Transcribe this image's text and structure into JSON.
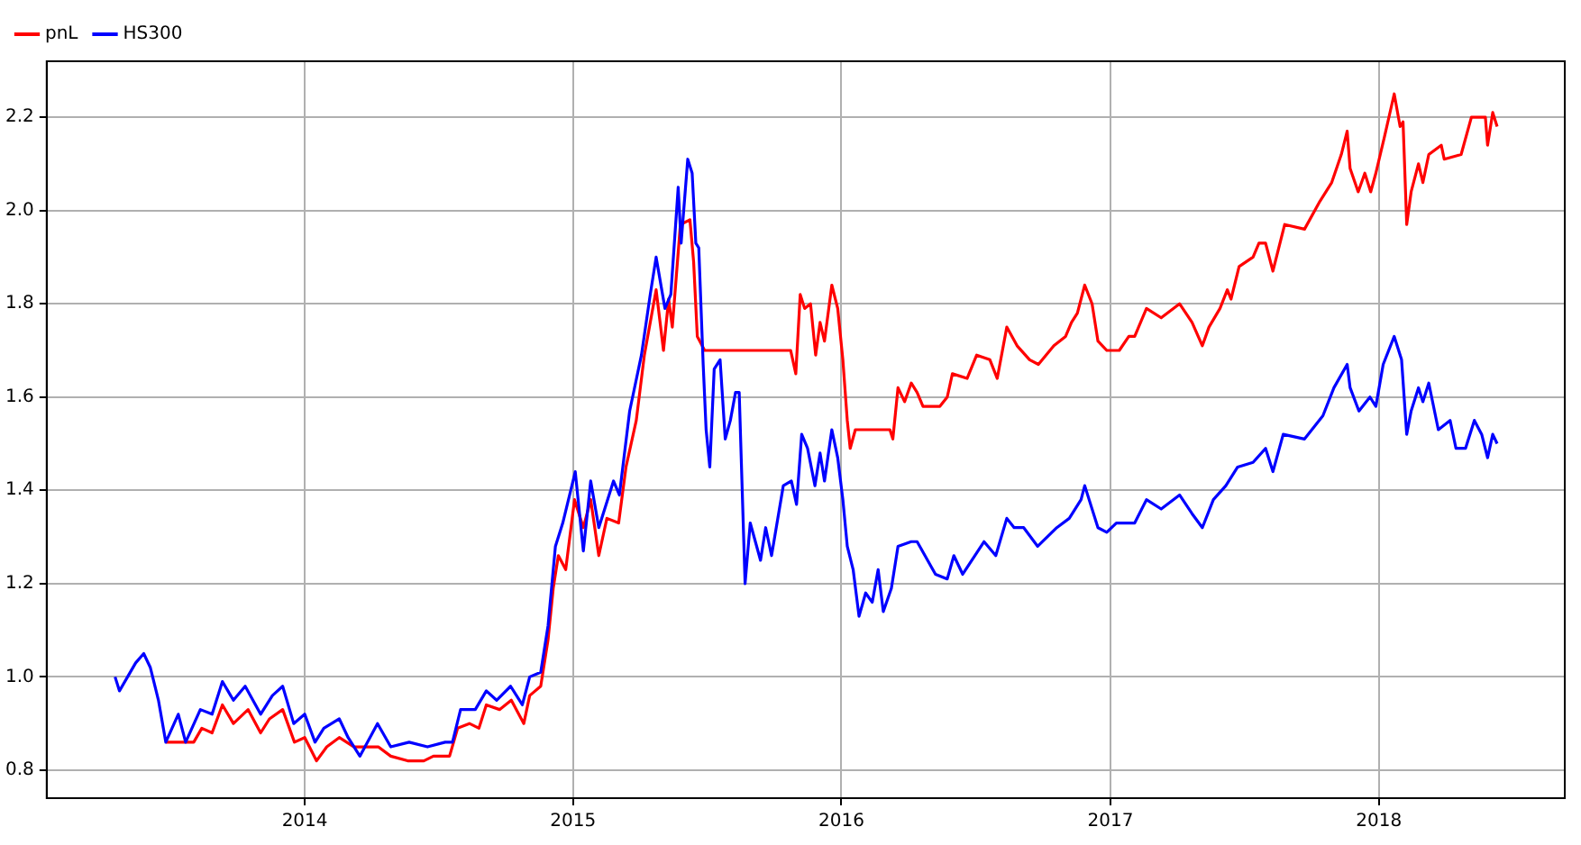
{
  "chart_data": {
    "type": "line",
    "xlim": [
      "2013-01-15",
      "2018-09-11"
    ],
    "xticks": [
      "2014",
      "2015",
      "2016",
      "2017",
      "2018"
    ],
    "ylim": [
      0.74,
      2.32
    ],
    "yticks": [
      0.8,
      {
        "value": 1,
        "label": "1.0"
      },
      1.2,
      1.4,
      1.6,
      1.8,
      {
        "value": 2,
        "label": "2.0"
      },
      2.2
    ],
    "grid": true,
    "legend": "top left",
    "series": [
      {
        "name": "pnL",
        "color": "#ff0000",
        "x": [
          "2013-06-26",
          "2013-07-06",
          "2013-08-03",
          "2013-08-14",
          "2013-08-28",
          "2013-09-11",
          "2013-09-26",
          "2013-10-16",
          "2013-11-02",
          "2013-11-14",
          "2013-12-02",
          "2013-12-18",
          "2014-01-01",
          "2014-01-17",
          "2014-01-31",
          "2014-02-17",
          "2014-03-09",
          "2014-03-25",
          "2014-04-11",
          "2014-04-28",
          "2014-05-21",
          "2014-06-12",
          "2014-06-25",
          "2014-07-17",
          "2014-07-28",
          "2014-08-13",
          "2014-08-26",
          "2014-09-05",
          "2014-09-23",
          "2014-10-09",
          "2014-10-26",
          "2014-11-03",
          "2014-11-18",
          "2014-11-28",
          "2014-12-05",
          "2014-12-12",
          "2014-12-22",
          "2015-01-03",
          "2015-01-15",
          "2015-01-25",
          "2015-02-05",
          "2015-02-16",
          "2015-03-04",
          "2015-03-14",
          "2015-03-28",
          "2015-04-08",
          "2015-04-24",
          "2015-05-04",
          "2015-05-11",
          "2015-05-16",
          "2015-05-27",
          "2015-06-09",
          "2015-06-14",
          "2015-06-19",
          "2015-06-29",
          "2015-10-24",
          "2015-10-31",
          "2015-11-06",
          "2015-11-12",
          "2015-11-20",
          "2015-11-27",
          "2015-12-03",
          "2015-12-09",
          "2015-12-19",
          "2015-12-27",
          "2016-01-03",
          "2016-01-09",
          "2016-01-13",
          "2016-01-20",
          "2016-03-07",
          "2016-03-11",
          "2016-03-18",
          "2016-03-27",
          "2016-04-05",
          "2016-04-13",
          "2016-04-21",
          "2016-05-14",
          "2016-05-24",
          "2016-05-31",
          "2016-06-20",
          "2016-07-03",
          "2016-07-21",
          "2016-07-31",
          "2016-08-13",
          "2016-08-27",
          "2016-09-13",
          "2016-09-25",
          "2016-10-16",
          "2016-11-01",
          "2016-11-09",
          "2016-11-17",
          "2016-11-27",
          "2016-12-07",
          "2016-12-15",
          "2016-12-27",
          "2017-01-13",
          "2017-01-26",
          "2017-02-03",
          "2017-02-19",
          "2017-03-11",
          "2017-04-05",
          "2017-04-22",
          "2017-05-06",
          "2017-05-15",
          "2017-05-30",
          "2017-06-09",
          "2017-06-14",
          "2017-06-25",
          "2017-07-14",
          "2017-07-22",
          "2017-07-31",
          "2017-08-10",
          "2017-08-26",
          "2017-09-22",
          "2017-10-13",
          "2017-10-29",
          "2017-11-11",
          "2017-11-19",
          "2017-11-23",
          "2017-12-04",
          "2017-12-13",
          "2017-12-21",
          "2017-12-28",
          "2018-01-09",
          "2018-01-22",
          "2018-01-30",
          "2018-02-03",
          "2018-02-08",
          "2018-02-14",
          "2018-02-24",
          "2018-03-02",
          "2018-03-10",
          "2018-03-27",
          "2018-03-31",
          "2018-04-23",
          "2018-05-07",
          "2018-05-26",
          "2018-05-29",
          "2018-06-05",
          "2018-06-11"
        ],
        "values": [
          0.86,
          0.86,
          0.86,
          0.89,
          0.88,
          0.94,
          0.9,
          0.93,
          0.88,
          0.91,
          0.93,
          0.86,
          0.87,
          0.82,
          0.85,
          0.87,
          0.85,
          0.85,
          0.85,
          0.83,
          0.82,
          0.82,
          0.83,
          0.83,
          0.89,
          0.9,
          0.89,
          0.94,
          0.93,
          0.95,
          0.9,
          0.96,
          0.98,
          1.08,
          1.19,
          1.26,
          1.23,
          1.38,
          1.32,
          1.38,
          1.26,
          1.34,
          1.33,
          1.45,
          1.55,
          1.69,
          1.83,
          1.7,
          1.81,
          1.75,
          1.97,
          1.98,
          1.89,
          1.73,
          1.7,
          1.7,
          1.65,
          1.82,
          1.79,
          1.8,
          1.69,
          1.76,
          1.72,
          1.84,
          1.79,
          1.68,
          1.55,
          1.49,
          1.53,
          1.53,
          1.51,
          1.62,
          1.59,
          1.63,
          1.61,
          1.58,
          1.58,
          1.6,
          1.65,
          1.64,
          1.69,
          1.68,
          1.64,
          1.75,
          1.71,
          1.68,
          1.67,
          1.71,
          1.73,
          1.76,
          1.78,
          1.84,
          1.8,
          1.72,
          1.7,
          1.7,
          1.73,
          1.73,
          1.79,
          1.77,
          1.8,
          1.76,
          1.71,
          1.75,
          1.79,
          1.83,
          1.81,
          1.88,
          1.9,
          1.93,
          1.93,
          1.87,
          1.97,
          1.96,
          2.02,
          2.06,
          2.12,
          2.17,
          2.09,
          2.04,
          2.08,
          2.04,
          2.08,
          2.16,
          2.25,
          2.18,
          2.19,
          1.97,
          2.04,
          2.1,
          2.06,
          2.12,
          2.14,
          2.11,
          2.12,
          2.2,
          2.2,
          2.14,
          2.21,
          2.18
        ]
      },
      {
        "name": "HS300",
        "color": "#0000ff",
        "x": [
          "2013-04-18",
          "2013-04-24",
          "2013-05-05",
          "2013-05-16",
          "2013-05-27",
          "2013-06-05",
          "2013-06-16",
          "2013-06-26",
          "2013-07-13",
          "2013-07-23",
          "2013-08-12",
          "2013-08-28",
          "2013-09-11",
          "2013-09-26",
          "2013-10-12",
          "2013-11-02",
          "2013-11-18",
          "2013-12-02",
          "2013-12-17",
          "2014-01-01",
          "2014-01-15",
          "2014-01-27",
          "2014-02-17",
          "2014-03-01",
          "2014-03-17",
          "2014-04-10",
          "2014-04-28",
          "2014-05-23",
          "2014-06-17",
          "2014-07-11",
          "2014-07-21",
          "2014-08-01",
          "2014-08-21",
          "2014-09-05",
          "2014-09-19",
          "2014-10-08",
          "2014-10-24",
          "2014-11-03",
          "2014-11-18",
          "2014-11-28",
          "2014-12-08",
          "2014-12-18",
          "2015-01-04",
          "2015-01-15",
          "2015-01-25",
          "2015-02-05",
          "2015-02-25",
          "2015-03-05",
          "2015-03-19",
          "2015-04-04",
          "2015-04-16",
          "2015-04-24",
          "2015-05-06",
          "2015-05-14",
          "2015-05-24",
          "2015-05-28",
          "2015-06-06",
          "2015-06-12",
          "2015-06-17",
          "2015-06-21",
          "2015-06-27",
          "2015-07-01",
          "2015-07-06",
          "2015-07-12",
          "2015-07-20",
          "2015-07-27",
          "2015-08-03",
          "2015-08-10",
          "2015-08-15",
          "2015-08-23",
          "2015-08-30",
          "2015-09-13",
          "2015-09-20",
          "2015-09-28",
          "2015-10-14",
          "2015-10-25",
          "2015-11-01",
          "2015-11-08",
          "2015-11-16",
          "2015-11-26",
          "2015-12-03",
          "2015-12-09",
          "2015-12-19",
          "2015-12-27",
          "2016-01-03",
          "2016-01-09",
          "2016-01-17",
          "2016-01-25",
          "2016-02-03",
          "2016-02-12",
          "2016-02-20",
          "2016-02-27",
          "2016-03-09",
          "2016-03-18",
          "2016-04-05",
          "2016-04-13",
          "2016-05-08",
          "2016-05-24",
          "2016-06-02",
          "2016-06-14",
          "2016-07-13",
          "2016-07-29",
          "2016-08-13",
          "2016-08-23",
          "2016-09-05",
          "2016-09-24",
          "2016-10-20",
          "2016-11-06",
          "2016-11-22",
          "2016-11-27",
          "2016-12-15",
          "2016-12-27",
          "2017-01-09",
          "2017-02-03",
          "2017-02-19",
          "2017-03-11",
          "2017-04-05",
          "2017-04-22",
          "2017-05-06",
          "2017-05-21",
          "2017-06-07",
          "2017-06-23",
          "2017-07-14",
          "2017-07-31",
          "2017-08-10",
          "2017-08-24",
          "2017-09-22",
          "2017-10-17",
          "2017-11-01",
          "2017-11-19",
          "2017-11-23",
          "2017-12-05",
          "2017-12-20",
          "2017-12-28",
          "2018-01-07",
          "2018-01-22",
          "2018-02-01",
          "2018-02-08",
          "2018-02-14",
          "2018-02-24",
          "2018-03-02",
          "2018-03-10",
          "2018-03-23",
          "2018-04-08",
          "2018-04-16",
          "2018-04-29",
          "2018-05-11",
          "2018-05-21",
          "2018-05-29",
          "2018-06-05",
          "2018-06-11"
        ],
        "values": [
          1.0,
          0.97,
          1.0,
          1.03,
          1.05,
          1.02,
          0.95,
          0.86,
          0.92,
          0.86,
          0.93,
          0.92,
          0.99,
          0.95,
          0.98,
          0.92,
          0.96,
          0.98,
          0.9,
          0.92,
          0.86,
          0.89,
          0.91,
          0.87,
          0.83,
          0.9,
          0.85,
          0.86,
          0.85,
          0.86,
          0.86,
          0.93,
          0.93,
          0.97,
          0.95,
          0.98,
          0.94,
          1.0,
          1.01,
          1.11,
          1.28,
          1.33,
          1.44,
          1.27,
          1.42,
          1.32,
          1.42,
          1.39,
          1.57,
          1.69,
          1.82,
          1.9,
          1.79,
          1.82,
          2.05,
          1.93,
          2.11,
          2.08,
          1.93,
          1.92,
          1.67,
          1.53,
          1.45,
          1.66,
          1.68,
          1.51,
          1.55,
          1.61,
          1.61,
          1.2,
          1.33,
          1.25,
          1.32,
          1.26,
          1.41,
          1.42,
          1.37,
          1.52,
          1.49,
          1.41,
          1.48,
          1.42,
          1.53,
          1.47,
          1.38,
          1.28,
          1.23,
          1.13,
          1.18,
          1.16,
          1.23,
          1.14,
          1.19,
          1.28,
          1.29,
          1.29,
          1.22,
          1.21,
          1.26,
          1.22,
          1.29,
          1.26,
          1.34,
          1.32,
          1.32,
          1.28,
          1.32,
          1.34,
          1.38,
          1.41,
          1.32,
          1.31,
          1.33,
          1.33,
          1.38,
          1.36,
          1.39,
          1.35,
          1.32,
          1.38,
          1.41,
          1.45,
          1.46,
          1.49,
          1.44,
          1.52,
          1.51,
          1.56,
          1.62,
          1.67,
          1.62,
          1.57,
          1.6,
          1.58,
          1.67,
          1.73,
          1.68,
          1.52,
          1.57,
          1.62,
          1.59,
          1.63,
          1.53,
          1.55,
          1.49,
          1.49,
          1.55,
          1.52,
          1.47,
          1.52,
          1.5
        ]
      }
    ]
  }
}
